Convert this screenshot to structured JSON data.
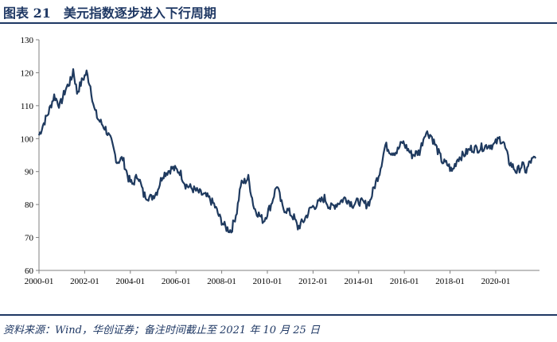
{
  "figure": {
    "title": "图表 21　美元指数逐步进入下行周期",
    "source": "资料来源：Wind，华创证券；备注时间截止至 2021 年 10 月 25 日"
  },
  "colors": {
    "line": "#1f3a5f",
    "title": "#1f3864",
    "axis": "#808080"
  },
  "chart_data": {
    "type": "line",
    "title": "",
    "xlabel": "",
    "ylabel": "",
    "ylim": [
      60,
      130
    ],
    "yticks": [
      60,
      70,
      80,
      90,
      100,
      110,
      120,
      130
    ],
    "xlim": [
      "2000-01",
      "2021-10"
    ],
    "xticks": [
      "2000-01",
      "2002-01",
      "2004-01",
      "2006-01",
      "2008-01",
      "2010-01",
      "2012-01",
      "2014-01",
      "2016-01",
      "2018-01",
      "2020-01"
    ],
    "grid": false,
    "legend": "none",
    "series": [
      {
        "x": [
          "2000-01",
          "2000-03",
          "2000-06",
          "2000-09",
          "2000-12",
          "2001-03",
          "2001-06",
          "2001-07",
          "2001-09",
          "2001-12",
          "2002-02",
          "2002-04",
          "2002-06",
          "2002-08",
          "2002-12",
          "2003-03",
          "2003-06",
          "2003-09",
          "2003-12",
          "2004-02",
          "2004-05",
          "2004-08",
          "2004-12",
          "2005-03",
          "2005-06",
          "2005-11",
          "2006-03",
          "2006-06",
          "2006-09",
          "2006-12",
          "2007-03",
          "2007-06",
          "2007-09",
          "2007-12",
          "2008-03",
          "2008-06",
          "2008-09",
          "2008-11",
          "2009-03",
          "2009-06",
          "2009-11",
          "2010-03",
          "2010-06",
          "2010-09",
          "2010-12",
          "2011-03",
          "2011-05",
          "2011-08",
          "2011-12",
          "2012-03",
          "2012-07",
          "2012-10",
          "2013-01",
          "2013-06",
          "2013-10",
          "2014-01",
          "2014-05",
          "2014-07",
          "2014-09",
          "2014-12",
          "2015-03",
          "2015-06",
          "2015-09",
          "2015-12",
          "2016-05",
          "2016-09",
          "2016-12",
          "2017-03",
          "2017-06",
          "2017-09",
          "2017-12",
          "2018-02",
          "2018-05",
          "2018-08",
          "2018-12",
          "2019-04",
          "2019-09",
          "2019-12",
          "2020-03",
          "2020-05",
          "2020-08",
          "2020-12",
          "2021-03",
          "2021-05",
          "2021-07",
          "2021-10"
        ],
        "values": [
          101,
          104,
          108,
          113,
          110,
          115,
          118,
          121,
          114,
          118,
          120,
          116,
          109,
          106,
          103,
          99,
          93,
          94,
          88,
          86,
          89,
          83,
          82,
          84,
          89,
          91,
          90,
          86,
          85,
          84,
          83,
          82,
          80,
          76,
          73,
          72,
          78,
          86,
          88,
          79,
          75,
          80,
          86,
          79,
          78,
          76,
          73,
          75,
          79,
          80,
          82,
          79,
          80,
          82,
          80,
          81,
          80,
          81,
          85,
          90,
          98,
          96,
          96,
          99,
          95,
          96,
          102,
          101,
          97,
          93,
          92,
          90,
          94,
          95,
          97,
          97,
          98,
          98,
          100,
          99,
          93,
          90,
          92,
          90,
          93,
          94
        ]
      }
    ]
  }
}
